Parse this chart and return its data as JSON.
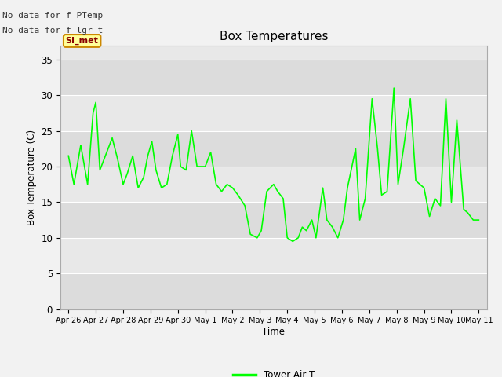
{
  "title": "Box Temperatures",
  "xlabel": "Time",
  "ylabel": "Box Temperature (C)",
  "text_no_data_1": "No data for f_PTemp",
  "text_no_data_2": "No data for f_lgr_t",
  "legend_label": "Tower Air T",
  "legend_line_color": "#00ff00",
  "line_color": "#00ff00",
  "background_color": "#f2f2f2",
  "plot_bg_color": "#e8e8e8",
  "band_colors": [
    "#dcdcdc",
    "#e8e8e8"
  ],
  "ylim": [
    0,
    37
  ],
  "yticks": [
    0,
    5,
    10,
    15,
    20,
    25,
    30,
    35
  ],
  "xtick_labels": [
    "Apr 26",
    "Apr 27",
    "Apr 28",
    "Apr 29",
    "Apr 30",
    "May 1",
    "May 2",
    "May 3",
    "May 4",
    "May 5",
    "May 6",
    "May 7",
    "May 8",
    "May 9",
    "May 10",
    "May 11"
  ],
  "si_met_label": "SI_met",
  "si_met_bg": "#ffff99",
  "si_met_border": "#cc8800",
  "si_met_text_color": "#880000",
  "x_values": [
    0,
    0.2,
    0.45,
    0.7,
    0.9,
    1.0,
    1.15,
    1.35,
    1.6,
    1.8,
    2.0,
    2.15,
    2.35,
    2.55,
    2.75,
    2.9,
    3.05,
    3.2,
    3.4,
    3.6,
    3.8,
    4.0,
    4.1,
    4.3,
    4.5,
    4.7,
    5.0,
    5.2,
    5.4,
    5.6,
    5.8,
    6.0,
    6.2,
    6.45,
    6.65,
    6.9,
    7.05,
    7.25,
    7.5,
    7.65,
    7.85,
    8.0,
    8.2,
    8.4,
    8.55,
    8.7,
    8.9,
    9.05,
    9.3,
    9.45,
    9.65,
    9.85,
    10.05,
    10.2,
    10.5,
    10.65,
    10.85,
    11.1,
    11.3,
    11.45,
    11.65,
    11.9,
    12.05,
    12.25,
    12.5,
    12.7,
    12.85,
    13.0,
    13.2,
    13.4,
    13.6,
    13.8,
    14.0,
    14.2,
    14.45,
    14.6,
    14.8,
    15.0
  ],
  "y_values": [
    21.5,
    17.5,
    23.0,
    17.5,
    27.5,
    29.0,
    19.5,
    21.5,
    24.0,
    21.0,
    17.5,
    19.0,
    21.5,
    17.0,
    18.5,
    21.5,
    23.5,
    19.5,
    17.0,
    17.5,
    21.5,
    24.5,
    20.0,
    19.5,
    25.0,
    20.0,
    20.0,
    22.0,
    17.5,
    16.5,
    17.5,
    17.0,
    16.0,
    14.5,
    10.5,
    10.0,
    11.0,
    16.5,
    17.5,
    16.5,
    15.5,
    10.0,
    9.5,
    10.0,
    11.5,
    11.0,
    12.5,
    10.0,
    17.0,
    12.5,
    11.5,
    10.0,
    12.5,
    17.0,
    22.5,
    12.5,
    15.5,
    29.5,
    22.5,
    16.0,
    16.5,
    31.0,
    17.5,
    22.5,
    29.5,
    18.0,
    17.5,
    17.0,
    13.0,
    15.5,
    14.5,
    29.5,
    15.0,
    26.5,
    14.0,
    13.5,
    12.5,
    12.5
  ]
}
